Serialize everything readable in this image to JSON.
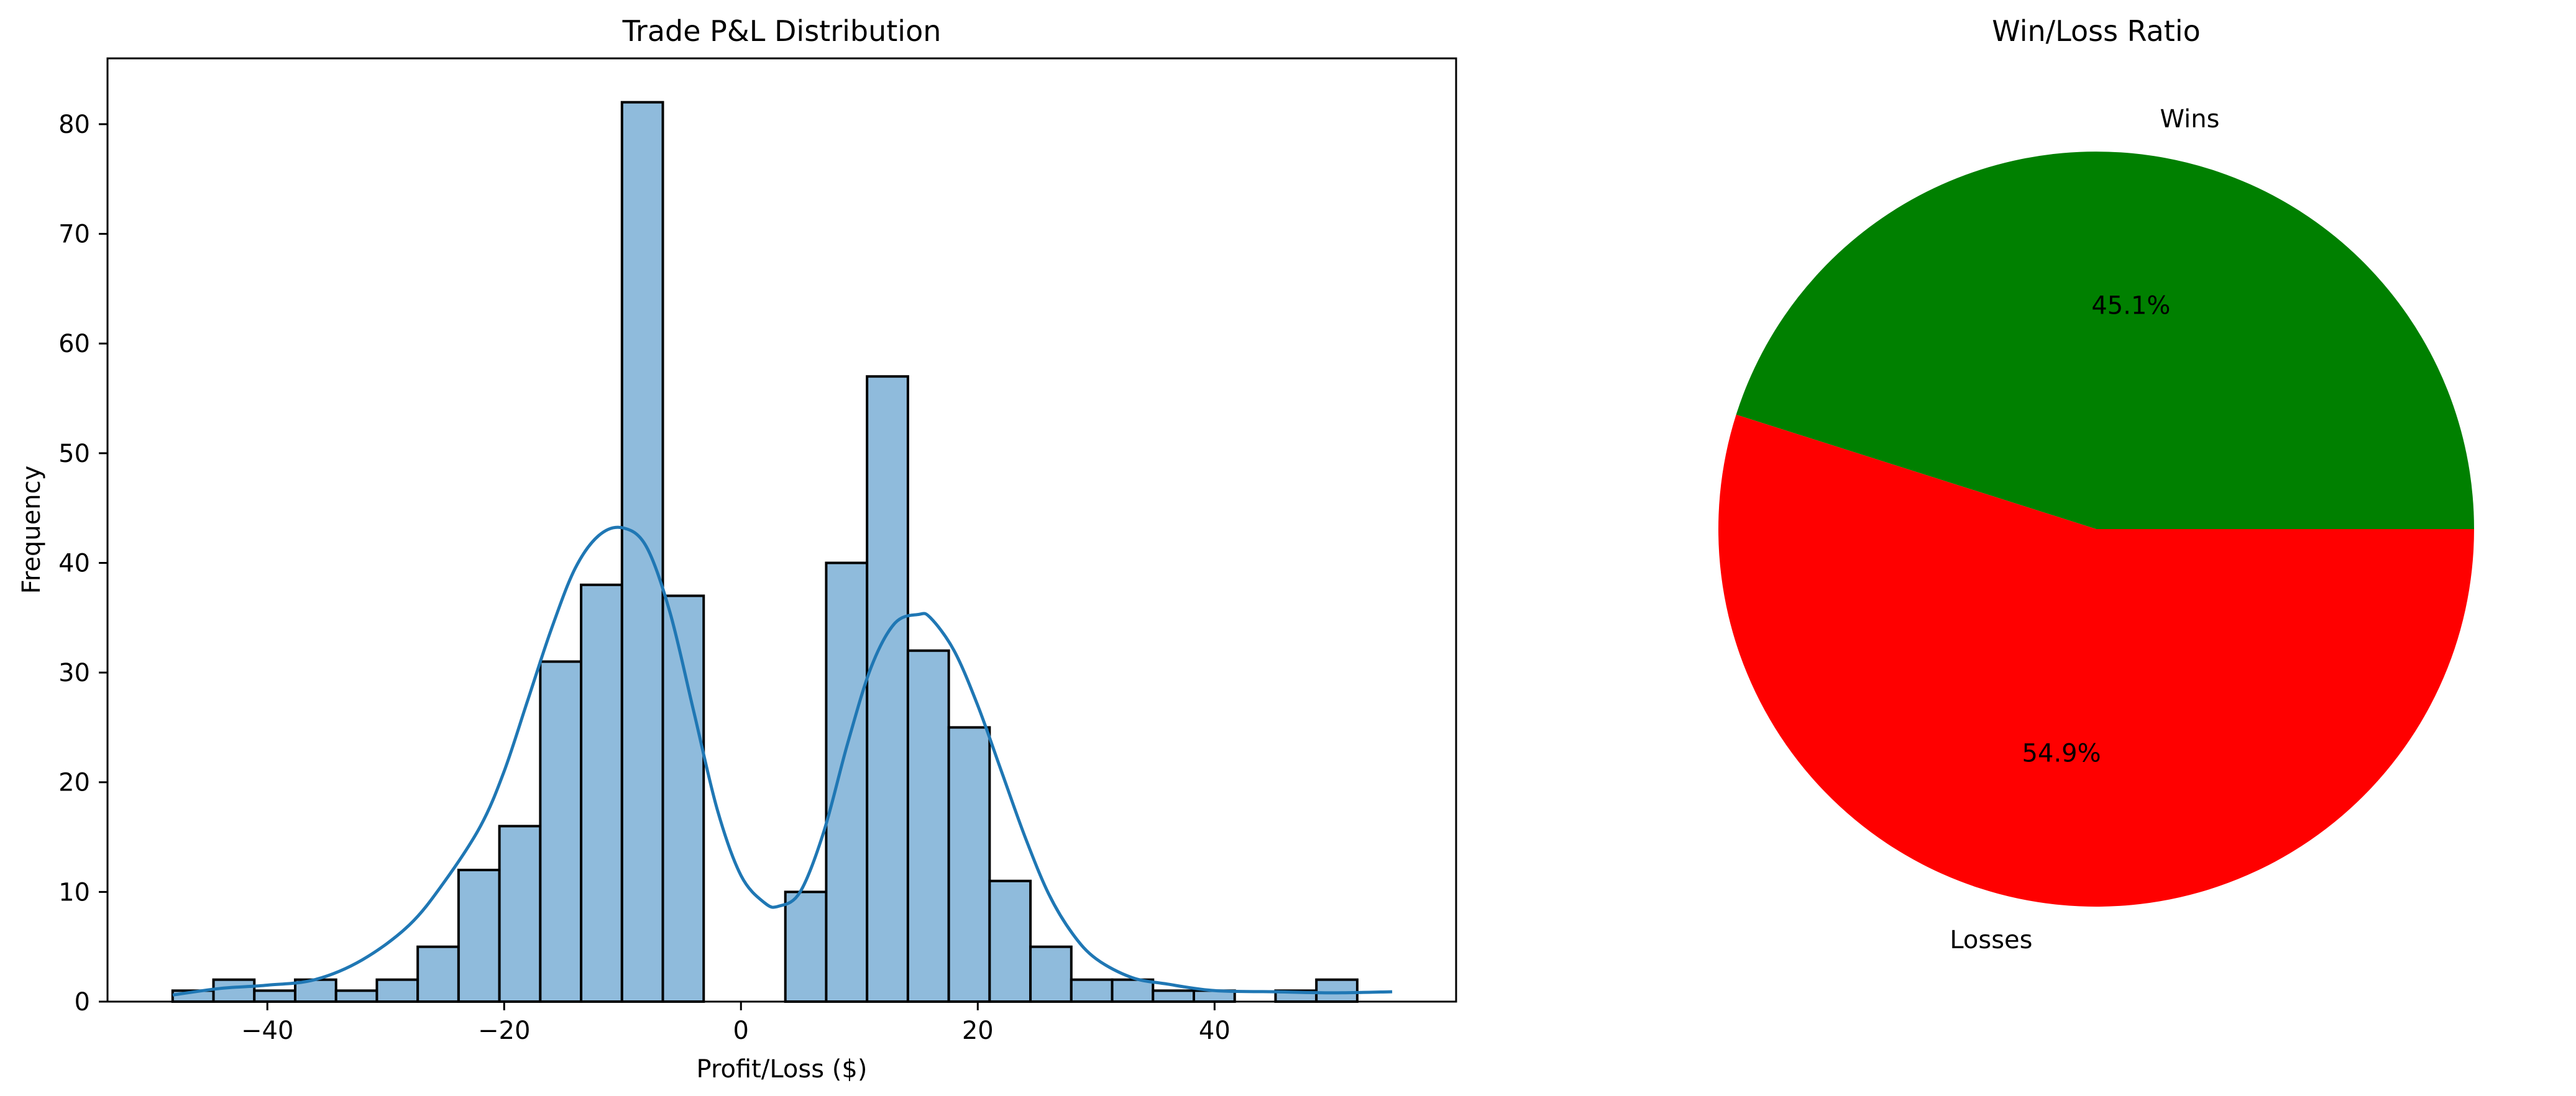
{
  "chart_data": [
    {
      "type": "bar",
      "subtype": "histogram-with-kde",
      "title": "Trade P&L Distribution",
      "xlabel": "Profit/Loss ($)",
      "ylabel": "Frequency",
      "xlim": [
        -53.5,
        60.4
      ],
      "ylim": [
        0,
        86
      ],
      "xticks": [
        -40,
        -20,
        0,
        20,
        40
      ],
      "xtick_labels": [
        "−40",
        "−20",
        "0",
        "20",
        "40"
      ],
      "yticks": [
        0,
        10,
        20,
        30,
        40,
        50,
        60,
        70,
        80
      ],
      "bin_start": -48.0,
      "bin_width": 3.45,
      "counts": [
        1,
        2,
        1,
        2,
        1,
        2,
        5,
        12,
        16,
        31,
        38,
        82,
        37,
        0,
        0,
        10,
        40,
        57,
        32,
        25,
        11,
        5,
        2,
        2,
        1,
        1,
        0,
        1,
        2
      ],
      "bar_color": "#8fbbdc",
      "bar_edge_color": "#000000",
      "kde_color": "#1f77b4",
      "kde": {
        "x": [
          -48,
          -44,
          -40,
          -36,
          -32,
          -28,
          -25,
          -22,
          -20,
          -18,
          -16,
          -14,
          -12,
          -10,
          -8,
          -6,
          -4,
          -2,
          0,
          2,
          3.2,
          5,
          7,
          9,
          11,
          13,
          15,
          16,
          18,
          20,
          22,
          24,
          26,
          28,
          30,
          33,
          36,
          40,
          45,
          50,
          55
        ],
        "y": [
          0.6,
          1.2,
          1.5,
          2.0,
          3.8,
          7.0,
          11.0,
          16.0,
          21.0,
          27.5,
          34.0,
          39.5,
          42.5,
          43.2,
          41.5,
          35.5,
          26.5,
          17.5,
          11.5,
          9.0,
          8.7,
          10.0,
          15.5,
          23.5,
          30.5,
          34.5,
          35.3,
          35.0,
          32.0,
          27.0,
          21.0,
          15.0,
          9.8,
          6.2,
          3.9,
          2.2,
          1.6,
          1.0,
          0.9,
          0.8,
          0.9
        ]
      },
      "grid": false,
      "legend": "none"
    },
    {
      "type": "pie",
      "title": "Win/Loss Ratio",
      "slices": [
        {
          "label": "Wins",
          "value": 45.1,
          "pct_label": "45.1%",
          "color": "#008000"
        },
        {
          "label": "Losses",
          "value": 54.9,
          "pct_label": "54.9%",
          "color": "#ff0000"
        }
      ],
      "start_angle": 0,
      "legend": "none"
    }
  ]
}
